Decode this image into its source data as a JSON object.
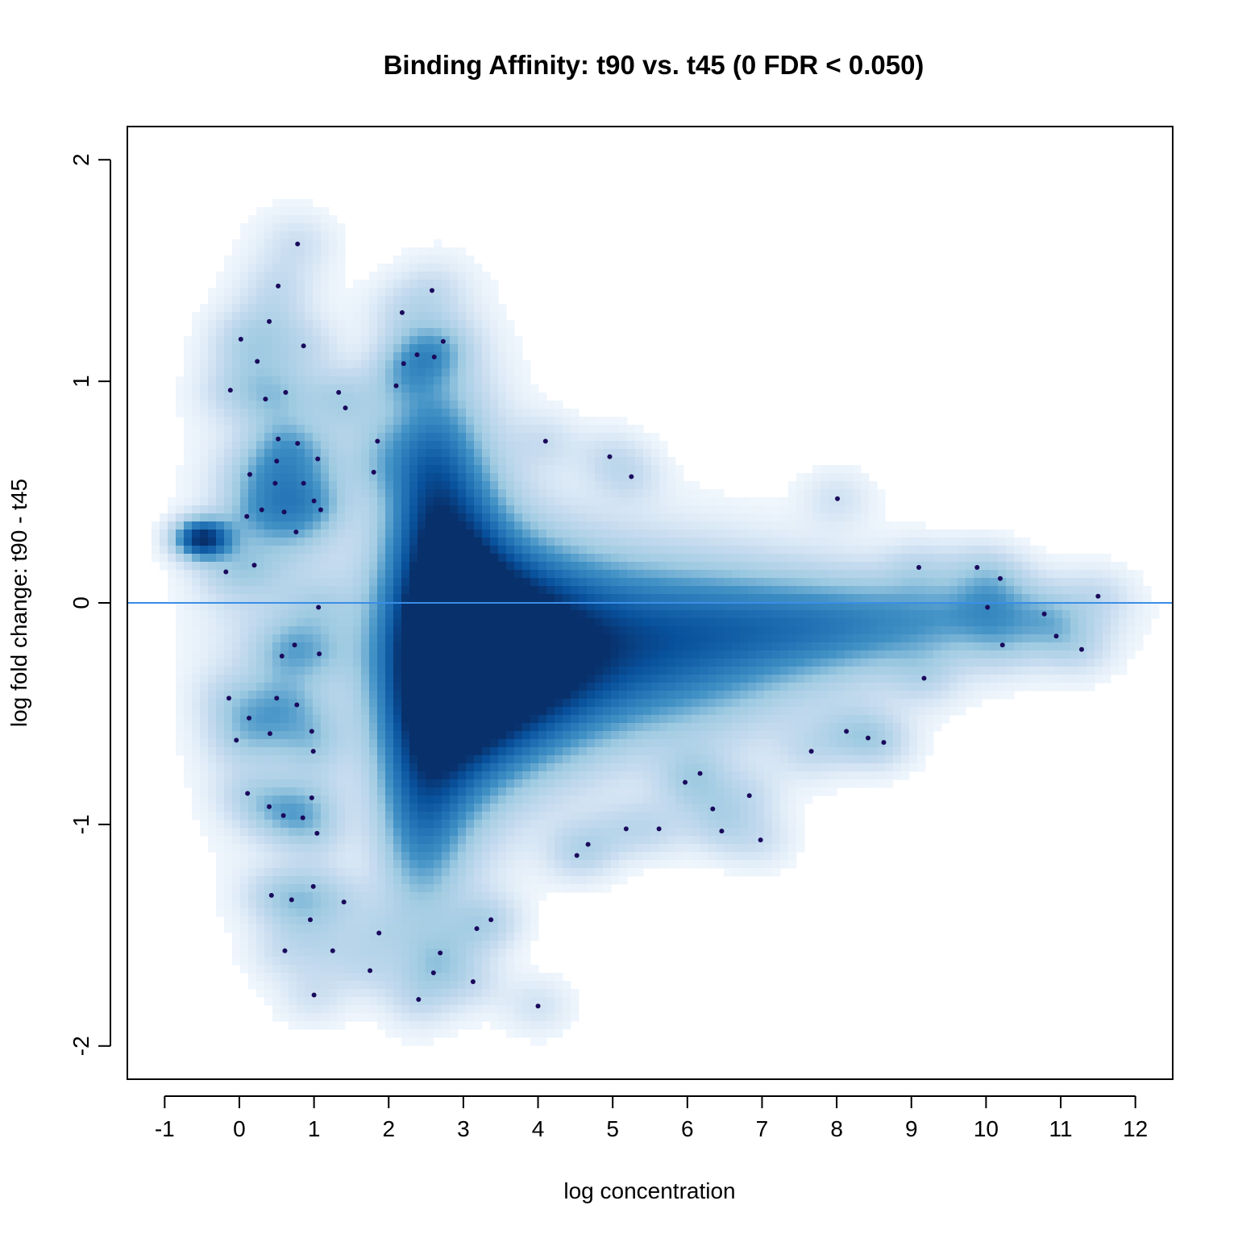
{
  "chart_data": {
    "type": "scatter",
    "title": "Binding Affinity: t90 vs. t45 (0 FDR < 0.050)",
    "xlabel": "log concentration",
    "ylabel": "log fold change: t90 - t45",
    "xlim": [
      -1.5,
      12.5
    ],
    "ylim": [
      -2.15,
      2.15
    ],
    "x_ticks": [
      -1,
      0,
      1,
      2,
      3,
      4,
      5,
      6,
      7,
      8,
      9,
      10,
      11,
      12
    ],
    "x_tick_labels": [
      "-1",
      "0",
      "1",
      "2",
      "3",
      "4",
      "5",
      "6",
      "7",
      "8",
      "9",
      "10",
      "11",
      "12"
    ],
    "y_ticks": [
      -2,
      -1,
      0,
      1,
      2
    ],
    "y_tick_labels": [
      "-2",
      "-1",
      "0",
      "1",
      "2"
    ],
    "reference_line": {
      "y": 0,
      "color": "#3a8ee6"
    },
    "density_colors": [
      "#f7fbff",
      "#c6dbef",
      "#9ecae1",
      "#4292c6",
      "#2171b5",
      "#08519c",
      "#08306b"
    ],
    "point_color": "#1a0a5c",
    "density_clusters": [
      {
        "x": -0.5,
        "y": 0.29,
        "sx": 0.25,
        "sy": 0.06,
        "w": 0.95
      },
      {
        "x": 3.4,
        "y": -0.25,
        "sx": 0.9,
        "sy": 0.35,
        "w": 1.0
      },
      {
        "x": 2.8,
        "y": -0.05,
        "sx": 0.55,
        "sy": 0.6,
        "w": 0.85
      },
      {
        "x": 5.2,
        "y": -0.2,
        "sx": 1.6,
        "sy": 0.28,
        "w": 0.75
      },
      {
        "x": 8.0,
        "y": -0.1,
        "sx": 1.4,
        "sy": 0.16,
        "w": 0.45
      },
      {
        "x": 10.0,
        "y": -0.05,
        "sx": 1.0,
        "sy": 0.12,
        "w": 0.22
      },
      {
        "x": 2.4,
        "y": -0.9,
        "sx": 0.4,
        "sy": 0.4,
        "w": 0.45
      },
      {
        "x": 2.5,
        "y": 0.6,
        "sx": 0.4,
        "sy": 0.3,
        "w": 0.35
      },
      {
        "x": 0.5,
        "y": 0.1,
        "sx": 0.7,
        "sy": 0.8,
        "w": 0.16
      }
    ],
    "points": {
      "x": [
        0.78,
        0.52,
        2.58,
        2.18,
        0.4,
        0.02,
        0.86,
        2.73,
        0.24,
        2.38,
        2.61,
        2.2,
        -0.12,
        2.1,
        0.62,
        1.33,
        0.35,
        1.42,
        0.52,
        1.85,
        0.78,
        4.1,
        0.5,
        1.05,
        4.96,
        0.14,
        1.8,
        5.25,
        0.48,
        0.86,
        1.0,
        1.09,
        0.3,
        0.6,
        0.1,
        8.01,
        0.76,
        0.2,
        -0.18,
        9.1,
        9.88,
        10.19,
        11.5,
        1.06,
        10.02,
        10.78,
        0.74,
        10.94,
        10.22,
        11.28,
        1.07,
        0.57,
        9.17,
        -0.14,
        0.5,
        0.77,
        0.13,
        0.97,
        8.13,
        0.41,
        -0.04,
        8.42,
        8.63,
        0.99,
        7.66,
        5.97,
        6.17,
        0.11,
        6.83,
        0.97,
        0.4,
        6.34,
        0.59,
        0.85,
        5.18,
        5.62,
        1.04,
        6.46,
        6.98,
        4.67,
        4.52,
        0.99,
        0.43,
        0.7,
        1.4,
        0.95,
        3.37,
        3.18,
        1.87,
        0.61,
        1.25,
        2.69,
        1.75,
        2.6,
        3.13,
        1.0,
        2.4,
        4.0
      ],
      "y": [
        1.62,
        1.43,
        1.41,
        1.31,
        1.27,
        1.19,
        1.16,
        1.18,
        1.09,
        1.12,
        1.11,
        1.08,
        0.96,
        0.98,
        0.95,
        0.95,
        0.92,
        0.88,
        0.74,
        0.73,
        0.72,
        0.73,
        0.64,
        0.65,
        0.66,
        0.58,
        0.59,
        0.57,
        0.54,
        0.54,
        0.46,
        0.42,
        0.42,
        0.41,
        0.39,
        0.47,
        0.32,
        0.17,
        0.14,
        0.16,
        0.16,
        0.11,
        0.03,
        -0.02,
        -0.02,
        -0.05,
        -0.19,
        -0.15,
        -0.19,
        -0.21,
        -0.23,
        -0.24,
        -0.34,
        -0.43,
        -0.43,
        -0.46,
        -0.52,
        -0.58,
        -0.58,
        -0.59,
        -0.62,
        -0.61,
        -0.63,
        -0.67,
        -0.67,
        -0.81,
        -0.77,
        -0.86,
        -0.87,
        -0.88,
        -0.92,
        -0.93,
        -0.96,
        -0.97,
        -1.02,
        -1.02,
        -1.04,
        -1.03,
        -1.07,
        -1.09,
        -1.14,
        -1.28,
        -1.32,
        -1.34,
        -1.35,
        -1.43,
        -1.43,
        -1.47,
        -1.49,
        -1.57,
        -1.57,
        -1.58,
        -1.66,
        -1.67,
        -1.71,
        -1.77,
        -1.79,
        -1.82
      ]
    }
  }
}
